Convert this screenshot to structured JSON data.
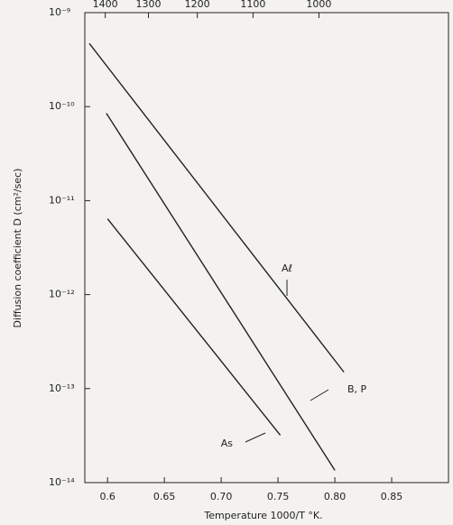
{
  "chart_data": {
    "type": "line",
    "y_scale": "log",
    "xlabel": "Temperature 1000/T °K.",
    "ylabel": "Diffusion coefficient D (cm²/sec)",
    "xlim": [
      0.58,
      0.9
    ],
    "ylim": [
      1e-14,
      1e-09
    ],
    "xticks": [
      0.6,
      0.65,
      {
        "value": 0.7,
        "label": "0.70"
      },
      0.75,
      {
        "value": 0.8,
        "label": "0.80"
      },
      0.85
    ],
    "yticks": [
      {
        "value": 1e-09,
        "label": "10⁻⁹"
      },
      {
        "value": 1e-10,
        "label": "10⁻¹⁰"
      },
      {
        "value": 1e-11,
        "label": "10⁻¹¹"
      },
      {
        "value": 1e-12,
        "label": "10⁻¹²"
      },
      {
        "value": 1e-13,
        "label": "10⁻¹³"
      },
      {
        "value": 1e-14,
        "label": "10⁻¹⁴"
      }
    ],
    "x2ticks": [
      {
        "value": 0.598,
        "label": "1400"
      },
      {
        "value": 0.636,
        "label": "1300"
      },
      {
        "value": 0.679,
        "label": "1200"
      },
      {
        "value": 0.728,
        "label": "1100"
      },
      {
        "value": 0.786,
        "label": "1000"
      }
    ],
    "series": [
      {
        "name": "Aℓ",
        "color": "#222222",
        "x": [
          0.584,
          0.808
        ],
        "values": [
          4.7e-10,
          1.5e-13
        ]
      },
      {
        "name": "B, P",
        "color": "#222222",
        "x": [
          0.599,
          0.8
        ],
        "values": [
          8.5e-11,
          1.35e-14
        ]
      },
      {
        "name": "As",
        "color": "#222222",
        "x": [
          0.6,
          0.752
        ],
        "values": [
          6.4e-12,
          3.2e-14
        ]
      }
    ]
  }
}
